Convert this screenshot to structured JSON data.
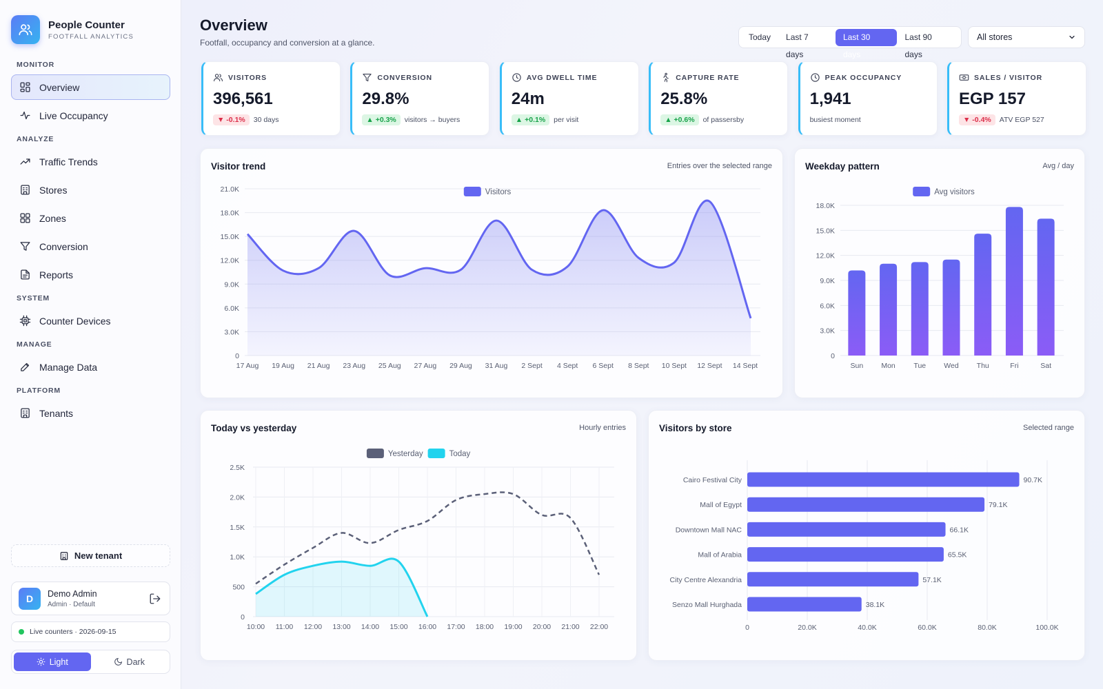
{
  "brand": {
    "title": "People Counter",
    "subtitle": "FOOTFALL ANALYTICS"
  },
  "nav": [
    {
      "section": "MONITOR",
      "items": [
        {
          "key": "overview",
          "label": "Overview",
          "icon": "grid-icon",
          "active": true
        },
        {
          "key": "live-occupancy",
          "label": "Live Occupancy",
          "icon": "pulse-icon"
        }
      ]
    },
    {
      "section": "ANALYZE",
      "items": [
        {
          "key": "traffic-trends",
          "label": "Traffic Trends",
          "icon": "trend-icon"
        },
        {
          "key": "stores",
          "label": "Stores",
          "icon": "building-icon"
        },
        {
          "key": "zones",
          "label": "Zones",
          "icon": "zones-icon"
        },
        {
          "key": "conversion",
          "label": "Conversion",
          "icon": "funnel-icon"
        },
        {
          "key": "reports",
          "label": "Reports",
          "icon": "document-icon"
        }
      ]
    },
    {
      "section": "SYSTEM",
      "items": [
        {
          "key": "counter-devices",
          "label": "Counter Devices",
          "icon": "chip-icon"
        }
      ]
    },
    {
      "section": "MANAGE",
      "items": [
        {
          "key": "manage-data",
          "label": "Manage Data",
          "icon": "pencil-icon"
        }
      ]
    },
    {
      "section": "PLATFORM",
      "items": [
        {
          "key": "tenants",
          "label": "Tenants",
          "icon": "building-icon"
        }
      ]
    }
  ],
  "sidebar_footer": {
    "new_tenant": "New tenant",
    "user": {
      "initial": "D",
      "name": "Demo Admin",
      "role": "Admin · Default"
    },
    "live": "Live counters · 2026-09-15",
    "theme_light": "Light",
    "theme_dark": "Dark"
  },
  "header": {
    "title": "Overview",
    "subtitle": "Footfall, occupancy and conversion at a glance.",
    "ranges": [
      "Today",
      "Last 7 days",
      "Last 30 days",
      "Last 90 days"
    ],
    "active_range": "Last 30 days",
    "store_select": "All stores"
  },
  "kpis": [
    {
      "key": "visitors",
      "label": "VISITORS",
      "icon": "users-icon",
      "value": "396,561",
      "delta": "▼ -0.1%",
      "trend": "down",
      "note": "30 days"
    },
    {
      "key": "conversion",
      "label": "CONVERSION",
      "icon": "funnel-icon",
      "value": "29.8%",
      "delta": "▲ +0.3%",
      "trend": "up",
      "note": "visitors → buyers"
    },
    {
      "key": "dwell",
      "label": "AVG DWELL TIME",
      "icon": "clock-icon",
      "value": "24m",
      "delta": "▲ +0.1%",
      "trend": "up",
      "note": "per visit"
    },
    {
      "key": "capture",
      "label": "CAPTURE RATE",
      "icon": "walking-icon",
      "value": "25.8%",
      "delta": "▲ +0.6%",
      "trend": "up",
      "note": "of passersby"
    },
    {
      "key": "peak",
      "label": "PEAK OCCUPANCY",
      "icon": "clock-icon",
      "value": "1,941",
      "delta": "",
      "trend": "none",
      "note": "busiest moment"
    },
    {
      "key": "sales",
      "label": "SALES / VISITOR",
      "icon": "cash-icon",
      "value": "EGP 157",
      "delta": "▼ -0.4%",
      "trend": "down",
      "note": "ATV EGP 527"
    }
  ],
  "panels": {
    "trend": {
      "title": "Visitor trend",
      "note": "Entries over the selected range"
    },
    "weekday": {
      "title": "Weekday pattern",
      "note": "Avg / day"
    },
    "today": {
      "title": "Today vs yesterday",
      "note": "Hourly entries"
    },
    "stores": {
      "title": "Visitors by store",
      "note": "Selected range"
    }
  },
  "colors": {
    "accent": "#6366f1",
    "today": "#22d3ee",
    "yesterday": "#5b6078",
    "up": "#18a34a",
    "down": "#dc2f4a"
  },
  "chart_data": [
    {
      "id": "visitor-trend",
      "type": "area",
      "x_labels": [
        "17 Aug",
        "19 Aug",
        "21 Aug",
        "23 Aug",
        "25 Aug",
        "27 Aug",
        "29 Aug",
        "31 Aug",
        "2 Sept",
        "4 Sept",
        "6 Sept",
        "8 Sept",
        "10 Sept",
        "12 Sept",
        "14 Sept"
      ],
      "series": [
        {
          "name": "Visitors",
          "values": [
            15300,
            10700,
            11000,
            15700,
            10100,
            11000,
            10800,
            17000,
            10800,
            11200,
            18300,
            12300,
            11700,
            19400,
            4700
          ]
        }
      ],
      "y_ticks": [
        0,
        3000,
        6000,
        9000,
        12000,
        15000,
        18000,
        21000
      ],
      "y_tick_labels": [
        "0",
        "3.0K",
        "6.0K",
        "9.0K",
        "12.0K",
        "15.0K",
        "18.0K",
        "21.0K"
      ],
      "ylim": [
        0,
        21000
      ],
      "legend": "top-center",
      "grid": true
    },
    {
      "id": "weekday-pattern",
      "type": "bar",
      "categories": [
        "Sun",
        "Mon",
        "Tue",
        "Wed",
        "Thu",
        "Fri",
        "Sat"
      ],
      "series": [
        {
          "name": "Avg visitors",
          "values": [
            10200,
            11000,
            11200,
            11500,
            14600,
            17800,
            16400
          ]
        }
      ],
      "y_ticks": [
        0,
        3000,
        6000,
        9000,
        12000,
        15000,
        18000
      ],
      "y_tick_labels": [
        "0",
        "3.0K",
        "6.0K",
        "9.0K",
        "12.0K",
        "15.0K",
        "18.0K"
      ],
      "ylim": [
        0,
        18000
      ],
      "legend": "top-center",
      "grid": true
    },
    {
      "id": "today-vs-yesterday",
      "type": "line",
      "x_labels": [
        "10:00",
        "11:00",
        "12:00",
        "13:00",
        "14:00",
        "15:00",
        "16:00",
        "17:00",
        "18:00",
        "19:00",
        "20:00",
        "21:00",
        "22:00"
      ],
      "series": [
        {
          "name": "Yesterday",
          "values": [
            550,
            870,
            1150,
            1400,
            1230,
            1450,
            1600,
            1950,
            2050,
            2050,
            1700,
            1650,
            700
          ],
          "style": "dashed"
        },
        {
          "name": "Today",
          "values": [
            380,
            700,
            850,
            920,
            850,
            920,
            0
          ],
          "style": "area"
        }
      ],
      "y_ticks": [
        0,
        500,
        1000,
        1500,
        2000,
        2500
      ],
      "y_tick_labels": [
        "0",
        "500",
        "1.0K",
        "1.5K",
        "2.0K",
        "2.5K"
      ],
      "ylim": [
        0,
        2500
      ],
      "legend": "top-center",
      "grid": true
    },
    {
      "id": "visitors-by-store",
      "type": "bar",
      "orientation": "horizontal",
      "categories": [
        "Cairo Festival City",
        "Mall of Egypt",
        "Downtown Mall NAC",
        "Mall of Arabia",
        "City Centre Alexandria",
        "Senzo Mall Hurghada"
      ],
      "values": [
        90700,
        79100,
        66100,
        65500,
        57100,
        38100
      ],
      "value_labels": [
        "90.7K",
        "79.1K",
        "66.1K",
        "65.5K",
        "57.1K",
        "38.1K"
      ],
      "x_ticks": [
        0,
        20000,
        40000,
        60000,
        80000,
        100000
      ],
      "x_tick_labels": [
        "0",
        "20.0K",
        "40.0K",
        "60.0K",
        "80.0K",
        "100.0K"
      ],
      "xlim": [
        0,
        100000
      ],
      "grid": true
    }
  ]
}
